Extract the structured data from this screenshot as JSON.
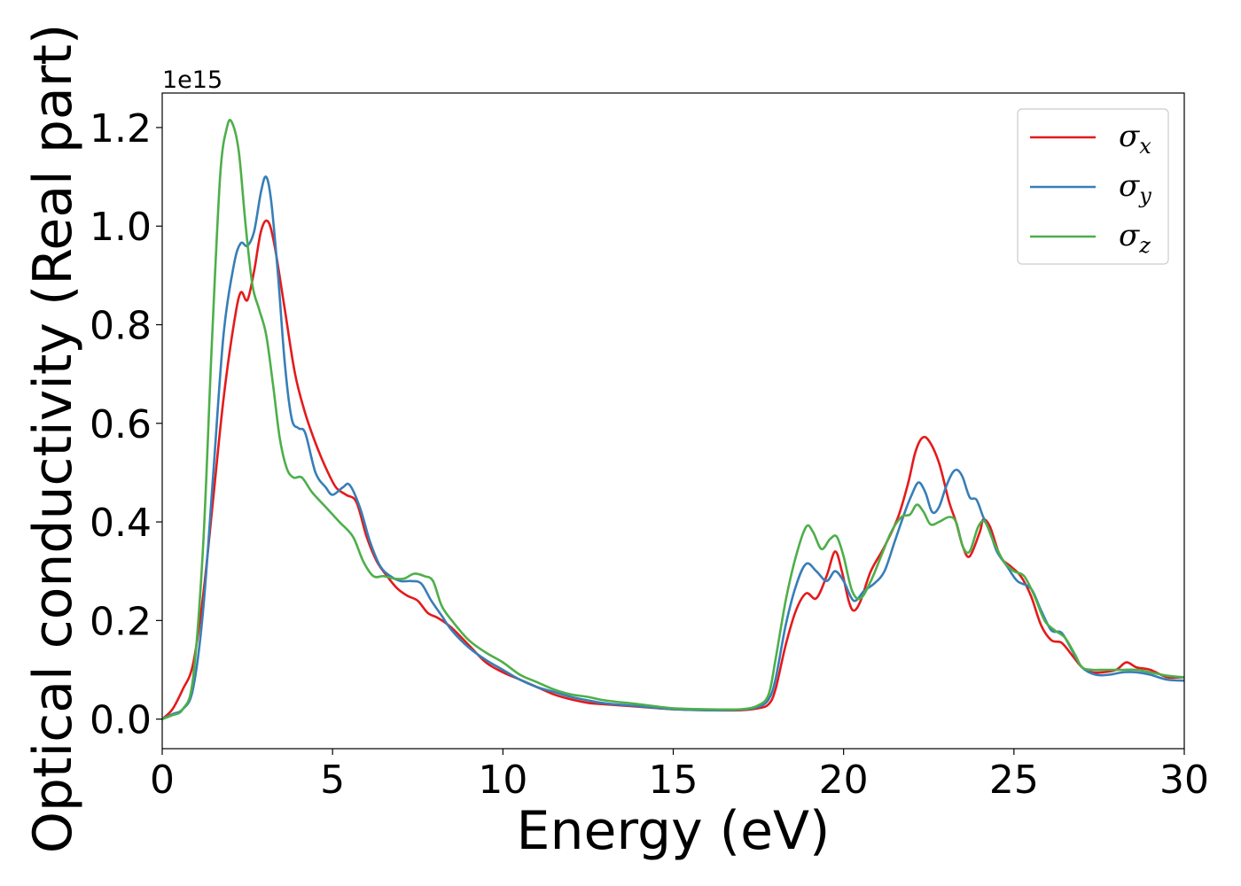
{
  "chart_data": {
    "type": "line",
    "title": "",
    "xlabel": "Energy (eV)",
    "ylabel": "Optical conductivity (Real part)",
    "y_offset_label": "1e15",
    "xlim": [
      0,
      30
    ],
    "ylim": [
      -0.06,
      1.27
    ],
    "x_ticks": [
      0,
      5,
      10,
      15,
      20,
      25,
      30
    ],
    "x_tick_labels": [
      "0",
      "5",
      "10",
      "15",
      "20",
      "25",
      "30"
    ],
    "y_ticks": [
      0.0,
      0.2,
      0.4,
      0.6,
      0.8,
      1.0,
      1.2
    ],
    "y_tick_labels": [
      "0.0",
      "0.2",
      "0.4",
      "0.6",
      "0.8",
      "1.0",
      "1.2"
    ],
    "grid": false,
    "legend_position": "top-right",
    "series": [
      {
        "name": "σx",
        "name_base": "σ",
        "name_sub": "x",
        "color": "#e41a1c",
        "points": [
          [
            0,
            0
          ],
          [
            0.3,
            0.02
          ],
          [
            0.6,
            0.06
          ],
          [
            0.9,
            0.11
          ],
          [
            1.2,
            0.25
          ],
          [
            1.5,
            0.45
          ],
          [
            1.8,
            0.65
          ],
          [
            2.1,
            0.8
          ],
          [
            2.3,
            0.865
          ],
          [
            2.5,
            0.85
          ],
          [
            2.7,
            0.91
          ],
          [
            2.9,
            0.99
          ],
          [
            3.1,
            1.01
          ],
          [
            3.3,
            0.96
          ],
          [
            3.6,
            0.83
          ],
          [
            3.9,
            0.7
          ],
          [
            4.2,
            0.62
          ],
          [
            4.5,
            0.56
          ],
          [
            4.8,
            0.51
          ],
          [
            5.1,
            0.47
          ],
          [
            5.4,
            0.455
          ],
          [
            5.7,
            0.44
          ],
          [
            6.0,
            0.37
          ],
          [
            6.3,
            0.32
          ],
          [
            6.6,
            0.29
          ],
          [
            6.9,
            0.265
          ],
          [
            7.2,
            0.25
          ],
          [
            7.5,
            0.24
          ],
          [
            7.8,
            0.215
          ],
          [
            8.1,
            0.205
          ],
          [
            8.5,
            0.185
          ],
          [
            9,
            0.15
          ],
          [
            9.5,
            0.115
          ],
          [
            10,
            0.095
          ],
          [
            10.5,
            0.08
          ],
          [
            11,
            0.065
          ],
          [
            11.5,
            0.05
          ],
          [
            12,
            0.04
          ],
          [
            12.5,
            0.033
          ],
          [
            13,
            0.03
          ],
          [
            14,
            0.025
          ],
          [
            15,
            0.02
          ],
          [
            16,
            0.018
          ],
          [
            17,
            0.018
          ],
          [
            17.5,
            0.022
          ],
          [
            17.8,
            0.03
          ],
          [
            18.0,
            0.06
          ],
          [
            18.3,
            0.15
          ],
          [
            18.6,
            0.22
          ],
          [
            18.9,
            0.255
          ],
          [
            19.2,
            0.245
          ],
          [
            19.5,
            0.29
          ],
          [
            19.75,
            0.34
          ],
          [
            19.95,
            0.3
          ],
          [
            20.15,
            0.24
          ],
          [
            20.3,
            0.22
          ],
          [
            20.5,
            0.24
          ],
          [
            20.8,
            0.3
          ],
          [
            21.2,
            0.35
          ],
          [
            21.6,
            0.41
          ],
          [
            21.9,
            0.48
          ],
          [
            22.1,
            0.54
          ],
          [
            22.3,
            0.57
          ],
          [
            22.5,
            0.565
          ],
          [
            22.8,
            0.52
          ],
          [
            23.1,
            0.44
          ],
          [
            23.3,
            0.4
          ],
          [
            23.5,
            0.35
          ],
          [
            23.7,
            0.33
          ],
          [
            24.0,
            0.38
          ],
          [
            24.1,
            0.405
          ],
          [
            24.3,
            0.39
          ],
          [
            24.6,
            0.33
          ],
          [
            24.9,
            0.31
          ],
          [
            25.2,
            0.29
          ],
          [
            25.5,
            0.25
          ],
          [
            25.8,
            0.19
          ],
          [
            26.1,
            0.16
          ],
          [
            26.4,
            0.155
          ],
          [
            26.7,
            0.13
          ],
          [
            27,
            0.105
          ],
          [
            27.3,
            0.095
          ],
          [
            27.6,
            0.095
          ],
          [
            28,
            0.1
          ],
          [
            28.3,
            0.115
          ],
          [
            28.6,
            0.105
          ],
          [
            29,
            0.1
          ],
          [
            29.5,
            0.085
          ],
          [
            30,
            0.085
          ]
        ]
      },
      {
        "name": "σy",
        "name_base": "σ",
        "name_sub": "y",
        "color": "#377eb8",
        "points": [
          [
            0,
            0
          ],
          [
            0.3,
            0.01
          ],
          [
            0.6,
            0.02
          ],
          [
            0.9,
            0.06
          ],
          [
            1.2,
            0.22
          ],
          [
            1.5,
            0.5
          ],
          [
            1.8,
            0.78
          ],
          [
            2.1,
            0.92
          ],
          [
            2.3,
            0.965
          ],
          [
            2.5,
            0.96
          ],
          [
            2.7,
            0.99
          ],
          [
            2.9,
            1.07
          ],
          [
            3.05,
            1.1
          ],
          [
            3.2,
            1.05
          ],
          [
            3.4,
            0.9
          ],
          [
            3.6,
            0.72
          ],
          [
            3.8,
            0.61
          ],
          [
            4.0,
            0.59
          ],
          [
            4.2,
            0.58
          ],
          [
            4.5,
            0.5
          ],
          [
            4.8,
            0.47
          ],
          [
            5.0,
            0.455
          ],
          [
            5.3,
            0.47
          ],
          [
            5.5,
            0.475
          ],
          [
            5.8,
            0.43
          ],
          [
            6.1,
            0.36
          ],
          [
            6.4,
            0.31
          ],
          [
            6.7,
            0.29
          ],
          [
            7.0,
            0.28
          ],
          [
            7.3,
            0.28
          ],
          [
            7.6,
            0.275
          ],
          [
            7.9,
            0.24
          ],
          [
            8.2,
            0.21
          ],
          [
            8.5,
            0.18
          ],
          [
            9,
            0.145
          ],
          [
            9.5,
            0.12
          ],
          [
            10,
            0.1
          ],
          [
            10.5,
            0.08
          ],
          [
            11,
            0.065
          ],
          [
            11.5,
            0.055
          ],
          [
            12,
            0.045
          ],
          [
            12.5,
            0.038
          ],
          [
            13,
            0.032
          ],
          [
            14,
            0.026
          ],
          [
            15,
            0.02
          ],
          [
            16,
            0.018
          ],
          [
            17,
            0.019
          ],
          [
            17.5,
            0.025
          ],
          [
            17.8,
            0.04
          ],
          [
            18.0,
            0.08
          ],
          [
            18.3,
            0.19
          ],
          [
            18.6,
            0.27
          ],
          [
            18.9,
            0.315
          ],
          [
            19.2,
            0.3
          ],
          [
            19.5,
            0.28
          ],
          [
            19.75,
            0.3
          ],
          [
            20.0,
            0.28
          ],
          [
            20.3,
            0.24
          ],
          [
            20.6,
            0.26
          ],
          [
            20.9,
            0.275
          ],
          [
            21.2,
            0.3
          ],
          [
            21.5,
            0.36
          ],
          [
            21.8,
            0.42
          ],
          [
            22.0,
            0.455
          ],
          [
            22.2,
            0.48
          ],
          [
            22.4,
            0.46
          ],
          [
            22.6,
            0.42
          ],
          [
            22.8,
            0.43
          ],
          [
            23.0,
            0.47
          ],
          [
            23.2,
            0.5
          ],
          [
            23.35,
            0.505
          ],
          [
            23.5,
            0.49
          ],
          [
            23.7,
            0.45
          ],
          [
            23.9,
            0.445
          ],
          [
            24.1,
            0.41
          ],
          [
            24.3,
            0.38
          ],
          [
            24.5,
            0.34
          ],
          [
            24.8,
            0.31
          ],
          [
            25.1,
            0.28
          ],
          [
            25.5,
            0.265
          ],
          [
            25.8,
            0.22
          ],
          [
            26.1,
            0.18
          ],
          [
            26.4,
            0.175
          ],
          [
            26.7,
            0.14
          ],
          [
            27,
            0.105
          ],
          [
            27.4,
            0.09
          ],
          [
            27.8,
            0.09
          ],
          [
            28.2,
            0.095
          ],
          [
            28.6,
            0.095
          ],
          [
            29,
            0.09
          ],
          [
            29.5,
            0.08
          ],
          [
            30,
            0.078
          ]
        ]
      },
      {
        "name": "σz",
        "name_base": "σ",
        "name_sub": "z",
        "color": "#4daf4a",
        "points": [
          [
            0,
            0
          ],
          [
            0.3,
            0.008
          ],
          [
            0.6,
            0.02
          ],
          [
            0.9,
            0.08
          ],
          [
            1.2,
            0.35
          ],
          [
            1.45,
            0.75
          ],
          [
            1.7,
            1.1
          ],
          [
            1.9,
            1.2
          ],
          [
            2.05,
            1.21
          ],
          [
            2.25,
            1.15
          ],
          [
            2.45,
            1.0
          ],
          [
            2.65,
            0.88
          ],
          [
            2.85,
            0.83
          ],
          [
            3.05,
            0.78
          ],
          [
            3.25,
            0.68
          ],
          [
            3.45,
            0.57
          ],
          [
            3.65,
            0.51
          ],
          [
            3.85,
            0.49
          ],
          [
            4.1,
            0.49
          ],
          [
            4.4,
            0.46
          ],
          [
            4.8,
            0.43
          ],
          [
            5.2,
            0.4
          ],
          [
            5.6,
            0.37
          ],
          [
            5.9,
            0.32
          ],
          [
            6.2,
            0.29
          ],
          [
            6.5,
            0.29
          ],
          [
            6.8,
            0.285
          ],
          [
            7.1,
            0.285
          ],
          [
            7.4,
            0.295
          ],
          [
            7.7,
            0.29
          ],
          [
            7.95,
            0.28
          ],
          [
            8.2,
            0.23
          ],
          [
            8.5,
            0.2
          ],
          [
            9,
            0.16
          ],
          [
            9.5,
            0.135
          ],
          [
            10,
            0.115
          ],
          [
            10.5,
            0.09
          ],
          [
            11,
            0.075
          ],
          [
            11.5,
            0.06
          ],
          [
            12,
            0.05
          ],
          [
            12.5,
            0.045
          ],
          [
            13,
            0.038
          ],
          [
            14,
            0.03
          ],
          [
            15,
            0.022
          ],
          [
            16,
            0.02
          ],
          [
            17,
            0.02
          ],
          [
            17.5,
            0.028
          ],
          [
            17.8,
            0.05
          ],
          [
            18.0,
            0.12
          ],
          [
            18.3,
            0.24
          ],
          [
            18.6,
            0.33
          ],
          [
            18.9,
            0.39
          ],
          [
            19.1,
            0.38
          ],
          [
            19.35,
            0.345
          ],
          [
            19.6,
            0.365
          ],
          [
            19.8,
            0.37
          ],
          [
            20.0,
            0.33
          ],
          [
            20.25,
            0.26
          ],
          [
            20.5,
            0.245
          ],
          [
            20.8,
            0.28
          ],
          [
            21.1,
            0.33
          ],
          [
            21.4,
            0.38
          ],
          [
            21.7,
            0.41
          ],
          [
            21.95,
            0.415
          ],
          [
            22.15,
            0.435
          ],
          [
            22.35,
            0.42
          ],
          [
            22.55,
            0.395
          ],
          [
            22.8,
            0.4
          ],
          [
            23.1,
            0.41
          ],
          [
            23.3,
            0.4
          ],
          [
            23.5,
            0.35
          ],
          [
            23.7,
            0.34
          ],
          [
            23.95,
            0.39
          ],
          [
            24.15,
            0.4
          ],
          [
            24.4,
            0.36
          ],
          [
            24.7,
            0.32
          ],
          [
            25.0,
            0.3
          ],
          [
            25.3,
            0.29
          ],
          [
            25.6,
            0.25
          ],
          [
            25.9,
            0.2
          ],
          [
            26.2,
            0.18
          ],
          [
            26.5,
            0.165
          ],
          [
            26.8,
            0.13
          ],
          [
            27,
            0.105
          ],
          [
            27.3,
            0.1
          ],
          [
            27.7,
            0.1
          ],
          [
            28.2,
            0.1
          ],
          [
            28.6,
            0.1
          ],
          [
            29,
            0.095
          ],
          [
            29.5,
            0.088
          ],
          [
            30,
            0.085
          ]
        ]
      }
    ]
  }
}
